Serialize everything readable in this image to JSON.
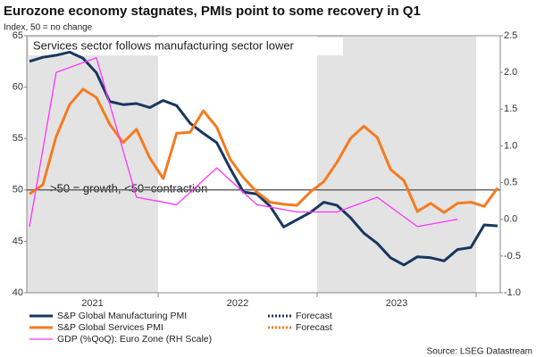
{
  "chart_data": {
    "type": "line",
    "title": "Eurozone economy stagnates, PMIs point to some recovery in Q1",
    "subtitle": "Index, 50 = no change",
    "annotations": [
      "Services sector follows manufacturing sector lower",
      ">50 = growth, <50=contraction"
    ],
    "source": "Source: LSEG Datastream",
    "reference_line": 50,
    "categories": [
      null,
      null,
      null,
      null,
      null,
      "2021",
      null,
      null,
      null,
      null,
      null,
      null,
      null,
      null,
      null,
      null,
      "2022",
      null,
      null,
      null,
      null,
      null,
      null,
      null,
      null,
      null,
      null,
      "2023",
      null,
      null,
      null,
      null,
      null,
      null,
      null,
      null
    ],
    "shaded_categories": [
      "2021",
      "2023"
    ],
    "series": [
      {
        "name": "S&P Global Manufacturing PMI",
        "color": "#17375e",
        "values": [
          62.5,
          62.9,
          63.1,
          63.4,
          62.8,
          61.4,
          58.6,
          58.3,
          58.4,
          58.0,
          58.7,
          58.2,
          56.5,
          55.5,
          54.6,
          52.1,
          49.8,
          49.6,
          48.4,
          46.4,
          47.1,
          47.8,
          48.8,
          48.5,
          47.3,
          45.8,
          44.8,
          43.4,
          42.7,
          43.5,
          43.4,
          43.1,
          44.2,
          44.4,
          46.6,
          46.5
        ]
      },
      {
        "name": "S&P Global Services PMI",
        "color": "#f47b20",
        "values": [
          49.6,
          50.5,
          55.2,
          58.3,
          59.8,
          59.0,
          56.4,
          54.6,
          55.9,
          53.1,
          51.1,
          55.5,
          55.6,
          57.7,
          56.1,
          53.0,
          51.2,
          49.8,
          48.8,
          48.6,
          48.5,
          49.8,
          50.8,
          52.7,
          55.0,
          56.2,
          55.1,
          52.0,
          50.9,
          47.9,
          48.7,
          47.8,
          48.7,
          48.8,
          48.4,
          50.2
        ]
      },
      {
        "name": "GDP (%QoQ): Euro Zone (RH Scale)",
        "color": "#ff33ff",
        "axis": "y2",
        "values": [
          -0.1,
          null,
          2.0,
          null,
          null,
          2.2,
          null,
          null,
          0.3,
          null,
          null,
          0.2,
          null,
          null,
          0.7,
          null,
          null,
          0.2,
          null,
          null,
          0.1,
          null,
          null,
          0.1,
          null,
          null,
          0.3,
          null,
          null,
          -0.1,
          null,
          null,
          0.0,
          null,
          null,
          null
        ]
      },
      {
        "name": "Forecast",
        "color": "#17375e",
        "dash": "dotted",
        "values": [
          null,
          null,
          null,
          null,
          null,
          null,
          null,
          null,
          null,
          null,
          null,
          null,
          null,
          null,
          null,
          null,
          null,
          null,
          null,
          null,
          null,
          null,
          null,
          null,
          null,
          null,
          null,
          null,
          null,
          null,
          null,
          null,
          null,
          null,
          null,
          null
        ]
      },
      {
        "name": "Forecast",
        "color": "#f47b20",
        "dash": "dotted",
        "values": [
          null,
          null,
          null,
          null,
          null,
          null,
          null,
          null,
          null,
          null,
          null,
          null,
          null,
          null,
          null,
          null,
          null,
          null,
          null,
          null,
          null,
          null,
          null,
          null,
          null,
          null,
          null,
          null,
          null,
          null,
          null,
          null,
          null,
          null,
          null,
          null
        ]
      }
    ],
    "ylim": [
      40,
      65
    ],
    "yticks": [
      40,
      45,
      50,
      55,
      60,
      65
    ],
    "y2lim": [
      -1.0,
      2.5
    ],
    "y2ticks": [
      {
        "value": -1.0,
        "label": "-1.0"
      },
      -0.5,
      {
        "value": 0.0,
        "label": "0.0"
      },
      0.5,
      {
        "value": 1.0,
        "label": "1.0"
      },
      1.5,
      {
        "value": 2.0,
        "label": "2.0"
      },
      2.5
    ]
  }
}
